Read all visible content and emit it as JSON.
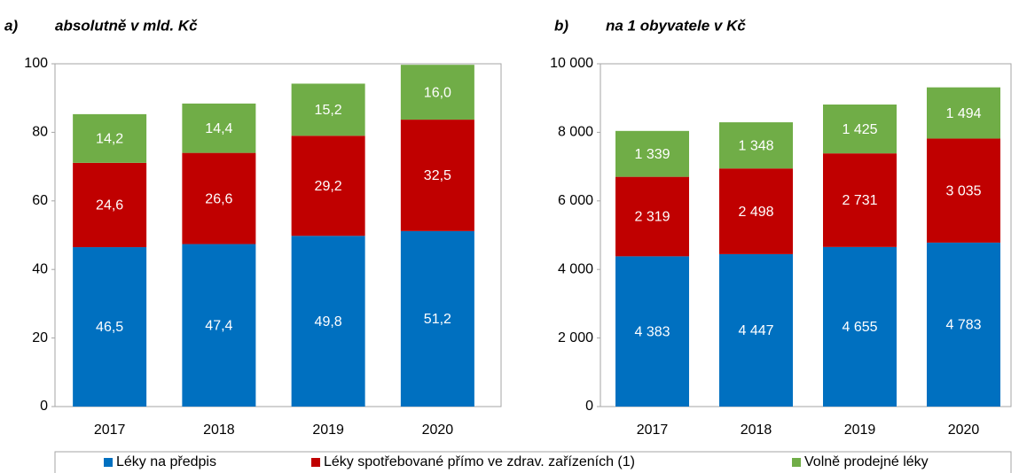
{
  "chart_data": [
    {
      "type": "stacked_bar",
      "label": "a)",
      "title": "absolutně v mld. Kč",
      "categories": [
        "2017",
        "2018",
        "2019",
        "2020"
      ],
      "series": [
        {
          "name": "Léky na předpis",
          "color": "#0070c0",
          "values": [
            46.5,
            47.4,
            49.8,
            51.2
          ],
          "value_labels": [
            "46,5",
            "47,4",
            "49,8",
            "51,2"
          ]
        },
        {
          "name": "Léky spotřebované přímo ve zdrav. zařízeních (1)",
          "color": "#c00000",
          "values": [
            24.6,
            26.6,
            29.2,
            32.5
          ],
          "value_labels": [
            "24,6",
            "26,6",
            "29,2",
            "32,5"
          ]
        },
        {
          "name": "Volně prodejné léky",
          "color": "#70ad47",
          "values": [
            14.2,
            14.4,
            15.2,
            16.0
          ],
          "value_labels": [
            "14,2",
            "14,4",
            "15,2",
            "16,0"
          ]
        }
      ],
      "ylim": [
        0,
        100
      ],
      "yticks": [
        0,
        20,
        40,
        60,
        80,
        100
      ],
      "legend": "bottom"
    },
    {
      "type": "stacked_bar",
      "label": "b)",
      "title": "na 1 obyvatele v Kč",
      "categories": [
        "2017",
        "2018",
        "2019",
        "2020"
      ],
      "series": [
        {
          "color": "#0070c0",
          "values": [
            4383,
            4447,
            4655,
            4783
          ],
          "value_labels": [
            "4 383",
            "4 447",
            "4 655",
            "4 783"
          ]
        },
        {
          "color": "#c00000",
          "values": [
            2319,
            2498,
            2731,
            3035
          ],
          "value_labels": [
            "2 319",
            "2 498",
            "2 731",
            "3 035"
          ]
        },
        {
          "color": "#70ad47",
          "values": [
            1339,
            1348,
            1425,
            1494
          ],
          "value_labels": [
            "1 339",
            "1 348",
            "1 425",
            "1 494"
          ]
        }
      ],
      "ylim": [
        0,
        10000
      ],
      "yticks": [
        0,
        {
          "value": 2000,
          "label": "2 000"
        },
        {
          "value": 4000,
          "label": "4 000"
        },
        {
          "value": 6000,
          "label": "6 000"
        },
        {
          "value": 8000,
          "label": "8 000"
        },
        {
          "value": 10000,
          "label": "10 000"
        }
      ]
    }
  ]
}
